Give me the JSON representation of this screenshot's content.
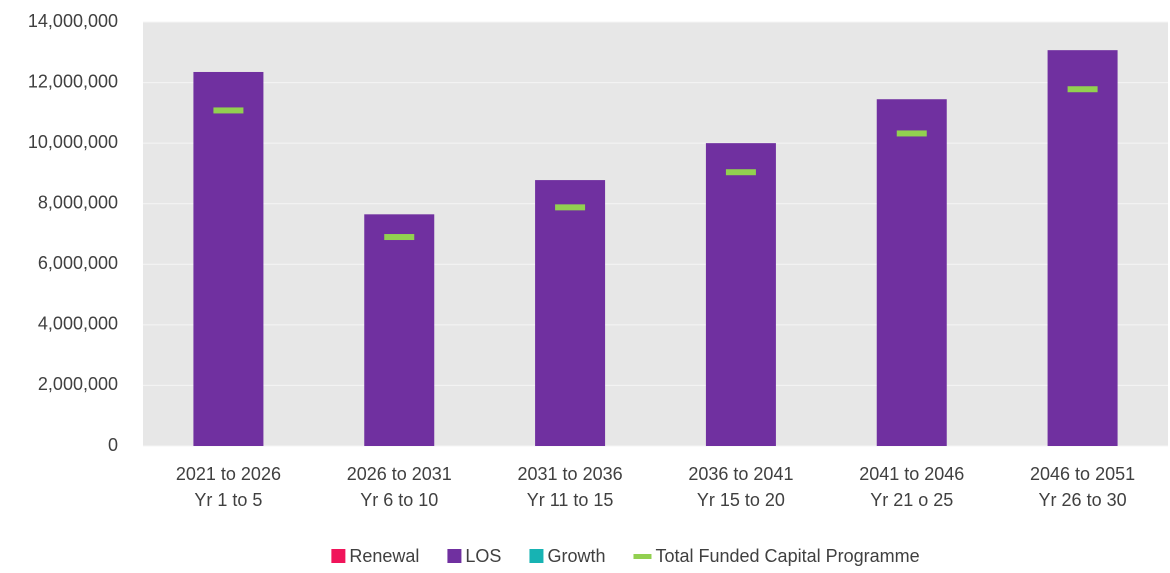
{
  "chart_data": {
    "type": "bar",
    "stacked": true,
    "categories": [
      [
        "2021 to 2026",
        "Yr 1 to 5"
      ],
      [
        "2026 to 2031",
        "Yr 6 to 10"
      ],
      [
        "2031 to 2036",
        "Yr 11 to 15"
      ],
      [
        "2036 to 2041",
        "Yr 15 to 20"
      ],
      [
        "2041 to 2046",
        "Yr 21 o 25"
      ],
      [
        "2046 to 2051",
        "Yr 26 to 30"
      ]
    ],
    "series": [
      {
        "name": "Renewal",
        "color": "#f0145a",
        "values": [
          0,
          0,
          0,
          0,
          0,
          0
        ]
      },
      {
        "name": "LOS",
        "color": "#7030a0",
        "values": [
          12350000,
          7650000,
          8780000,
          10000000,
          11450000,
          13070000
        ]
      },
      {
        "name": "Growth",
        "color": "#17b3b3",
        "values": [
          0,
          0,
          0,
          0,
          0,
          0
        ]
      },
      {
        "name": "Total Funded Capital Programme",
        "type": "line",
        "color": "#92d050",
        "values": [
          11080000,
          6900000,
          7880000,
          9040000,
          10320000,
          11780000
        ]
      }
    ],
    "ylim": [
      0,
      14000000
    ],
    "yticks": [
      0,
      {
        "value": 2000000,
        "label": "2,000,000"
      },
      {
        "value": 4000000,
        "label": "4,000,000"
      },
      {
        "value": 6000000,
        "label": "6,000,000"
      },
      {
        "value": 8000000,
        "label": "8,000,000"
      },
      {
        "value": 10000000,
        "label": "10,000,000"
      },
      {
        "value": 12000000,
        "label": "12,000,000"
      },
      {
        "value": 14000000,
        "label": "14,000,000"
      }
    ],
    "grid": true,
    "legend": "bottom"
  }
}
